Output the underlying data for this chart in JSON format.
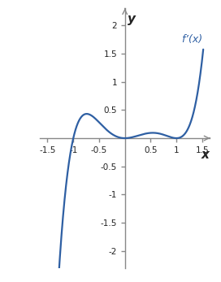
{
  "title": "",
  "xlabel": "x",
  "ylabel": "y",
  "label": "f’(x)",
  "xlim": [
    -1.65,
    1.65
  ],
  "ylim": [
    -2.3,
    2.3
  ],
  "xticks": [
    -1.5,
    -1.0,
    -0.5,
    0.5,
    1.0,
    1.5
  ],
  "yticks": [
    -2,
    -1.5,
    -1,
    -0.5,
    0.5,
    1,
    1.5,
    2
  ],
  "xtick_labels": [
    "-1.5",
    "-1",
    "-0.5",
    "0.5",
    "1",
    "1.5"
  ],
  "ytick_labels": [
    "-2",
    "-1.5",
    "-1",
    "-0.5",
    "0.5",
    "1",
    "1.5",
    "2"
  ],
  "curve_color": "#2e5fa3",
  "background_color": "#ffffff",
  "axis_color": "#888888",
  "x_range_start": -1.6,
  "x_range_end": 1.52,
  "figsize": [
    2.72,
    3.47
  ],
  "dpi": 100
}
